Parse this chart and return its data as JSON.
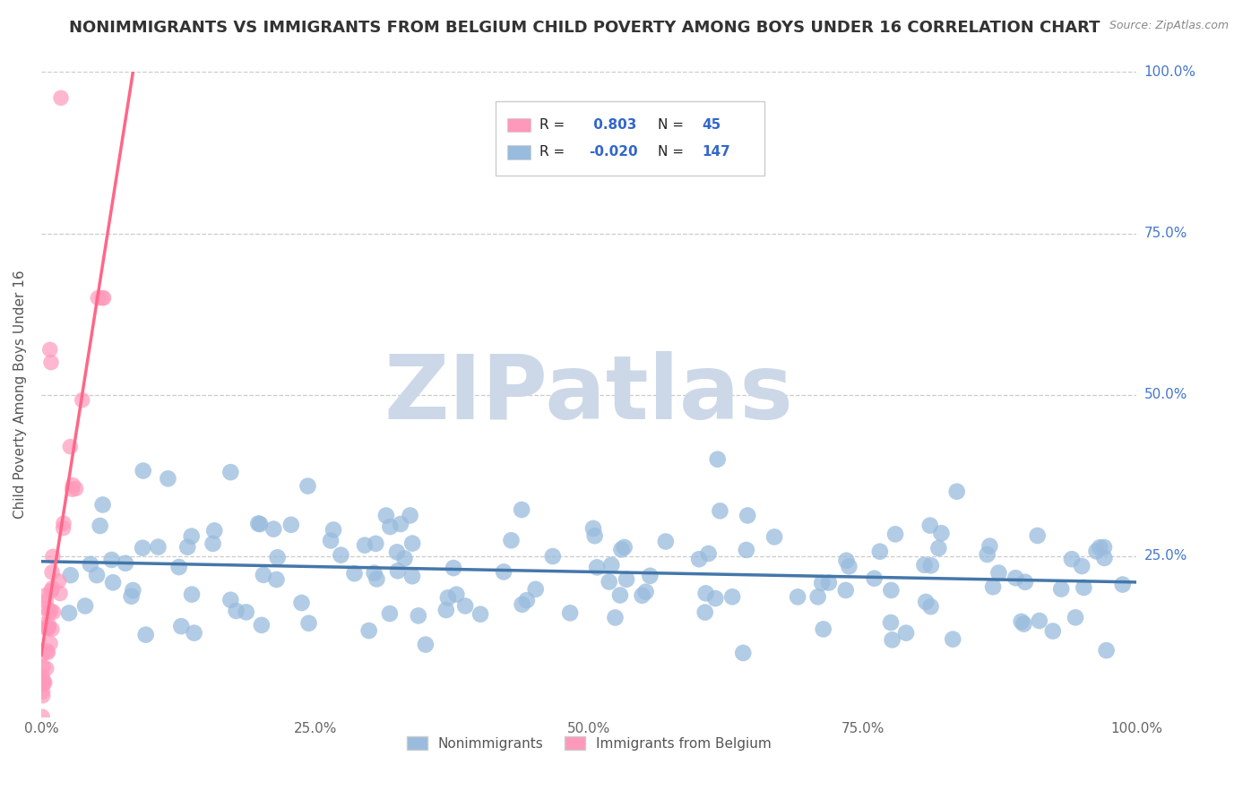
{
  "title": "NONIMMIGRANTS VS IMMIGRANTS FROM BELGIUM CHILD POVERTY AMONG BOYS UNDER 16 CORRELATION CHART",
  "source": "Source: ZipAtlas.com",
  "ylabel": "Child Poverty Among Boys Under 16",
  "watermark": "ZIPatlas",
  "blue_R": -0.02,
  "blue_N": 147,
  "pink_R": 0.803,
  "pink_N": 45,
  "blue_color": "#99BBDD",
  "pink_color": "#FF99BB",
  "blue_line_color": "#4477AA",
  "pink_line_color": "#FF6688",
  "legend_blue_label": "Nonimmigrants",
  "legend_pink_label": "Immigrants from Belgium",
  "xlim": [
    0,
    1
  ],
  "ylim": [
    0,
    1
  ],
  "background_color": "#ffffff",
  "grid_color": "#cccccc",
  "title_fontsize": 13,
  "axis_label_fontsize": 11,
  "tick_fontsize": 11,
  "watermark_fontsize": 72,
  "watermark_color": "#ccd8e8"
}
